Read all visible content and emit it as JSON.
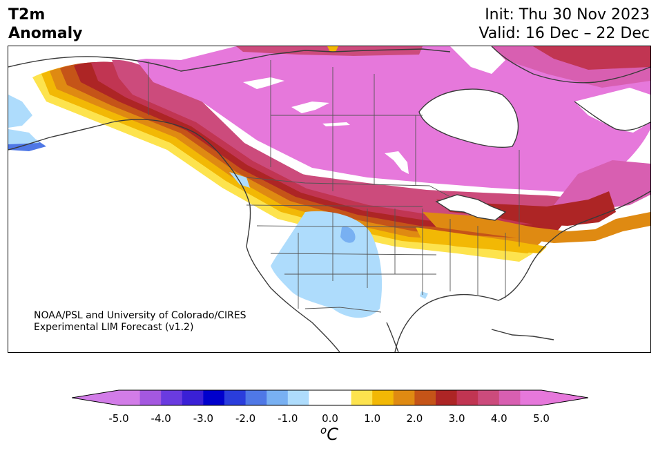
{
  "title": {
    "line1": "T2m",
    "line2": "Anomaly"
  },
  "init": "Init: Thu 30 Nov 2023",
  "valid": "Valid: 16 Dec – 22 Dec",
  "credit": {
    "line1": "NOAA/PSL and University of Colorado/CIRES",
    "line2": "Experimental LIM Forecast (v1.2)"
  },
  "colorbar": {
    "unit_prefix": "o",
    "unit": "C",
    "ticks": [
      "-5.0",
      "-4.0",
      "-3.0",
      "-2.0",
      "-1.0",
      "0.0",
      "1.0",
      "2.0",
      "3.0",
      "4.0",
      "5.0"
    ],
    "tick_values": [
      -5,
      -4,
      -3,
      -2,
      -1,
      0,
      1,
      2,
      3,
      4,
      5
    ],
    "range": [
      -5,
      5
    ],
    "colors": [
      "#d27ce8",
      "#a458e0",
      "#6a3be0",
      "#3a20d6",
      "#0000cc",
      "#2a3ddc",
      "#4f78e6",
      "#78b0f2",
      "#aedcfc",
      "#ffffff",
      "#ffffff",
      "#fde34e",
      "#f2b805",
      "#df8a12",
      "#c55418",
      "#ad2525",
      "#c13552",
      "#cc4b7c",
      "#d85fb1",
      "#e678db"
    ]
  }
}
